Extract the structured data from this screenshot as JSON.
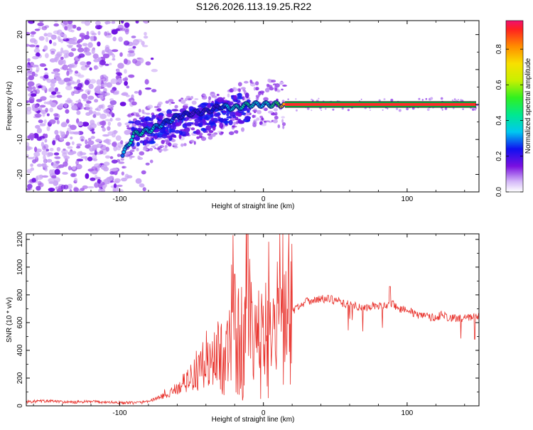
{
  "title": "S126.2026.113.19.25.R22",
  "chart_data": [
    {
      "type": "heatmap",
      "xlabel": "Height of straight line (km)",
      "ylabel": "Frequency (Hz)",
      "xlim": [
        -165,
        150
      ],
      "ylim": [
        -25,
        24
      ],
      "xticks": [
        -100,
        0,
        100
      ],
      "yticks": [
        -20,
        -10,
        0,
        10,
        20
      ],
      "colorbar": {
        "label": "Normalized spectral amplitude",
        "range": [
          0,
          0.96
        ],
        "ticks": [
          0.0,
          0.2,
          0.4,
          0.6,
          0.8
        ]
      },
      "ridge": [
        {
          "x": -98,
          "y": -14.5,
          "amp": 0.3
        },
        {
          "x": -90,
          "y": -8.5,
          "amp": 0.45
        },
        {
          "x": -80,
          "y": -7.5,
          "amp": 0.4
        },
        {
          "x": -70,
          "y": -5.5,
          "amp": 0.3
        },
        {
          "x": -60,
          "y": -3.5,
          "amp": 0.25
        },
        {
          "x": -50,
          "y": -2.5,
          "amp": 0.2
        },
        {
          "x": -40,
          "y": -2.0,
          "amp": 0.2
        },
        {
          "x": -30,
          "y": -0.5,
          "amp": 0.25
        },
        {
          "x": -20,
          "y": -1.0,
          "amp": 0.4
        },
        {
          "x": -10,
          "y": 0.0,
          "amp": 0.45
        },
        {
          "x": 0,
          "y": 0.0,
          "amp": 0.35
        },
        {
          "x": 10,
          "y": 0.0,
          "amp": 0.5
        },
        {
          "x": 15,
          "y": 0.0,
          "amp": 0.95
        },
        {
          "x": 148,
          "y": 0.0,
          "amp": 0.95
        }
      ]
    },
    {
      "type": "line",
      "xlabel": "Height of straight line (km)",
      "ylabel": "SNR (10 * v/v)",
      "xlim": [
        -165,
        150
      ],
      "ylim": [
        0,
        1240
      ],
      "xticks": [
        -100,
        0,
        100
      ],
      "yticks": [
        0,
        200,
        400,
        600,
        800,
        1000,
        1200
      ],
      "series": [
        {
          "color": "#e8302a",
          "x": [
            -165,
            -150,
            -135,
            -120,
            -105,
            -95,
            -85,
            -80,
            -75,
            -70,
            -65,
            -60,
            -55,
            -50,
            -45,
            -40,
            -35,
            -30,
            -25,
            -20,
            -15,
            -12,
            -10,
            -8,
            -5,
            0,
            5,
            10,
            15,
            20,
            25,
            30,
            35,
            40,
            45,
            50,
            55,
            60,
            65,
            70,
            75,
            80,
            85,
            90,
            95,
            100,
            105,
            110,
            115,
            120,
            125,
            130,
            135,
            140,
            145,
            150
          ],
          "y": [
            30,
            35,
            25,
            30,
            25,
            20,
            25,
            35,
            50,
            70,
            90,
            130,
            170,
            210,
            240,
            280,
            320,
            360,
            400,
            430,
            470,
            520,
            600,
            420,
            420,
            480,
            520,
            560,
            620,
            680,
            720,
            760,
            760,
            770,
            770,
            760,
            740,
            730,
            720,
            700,
            720,
            720,
            720,
            730,
            700,
            700,
            660,
            650,
            640,
            640,
            660,
            630,
            630,
            630,
            640,
            650
          ]
        }
      ]
    }
  ]
}
